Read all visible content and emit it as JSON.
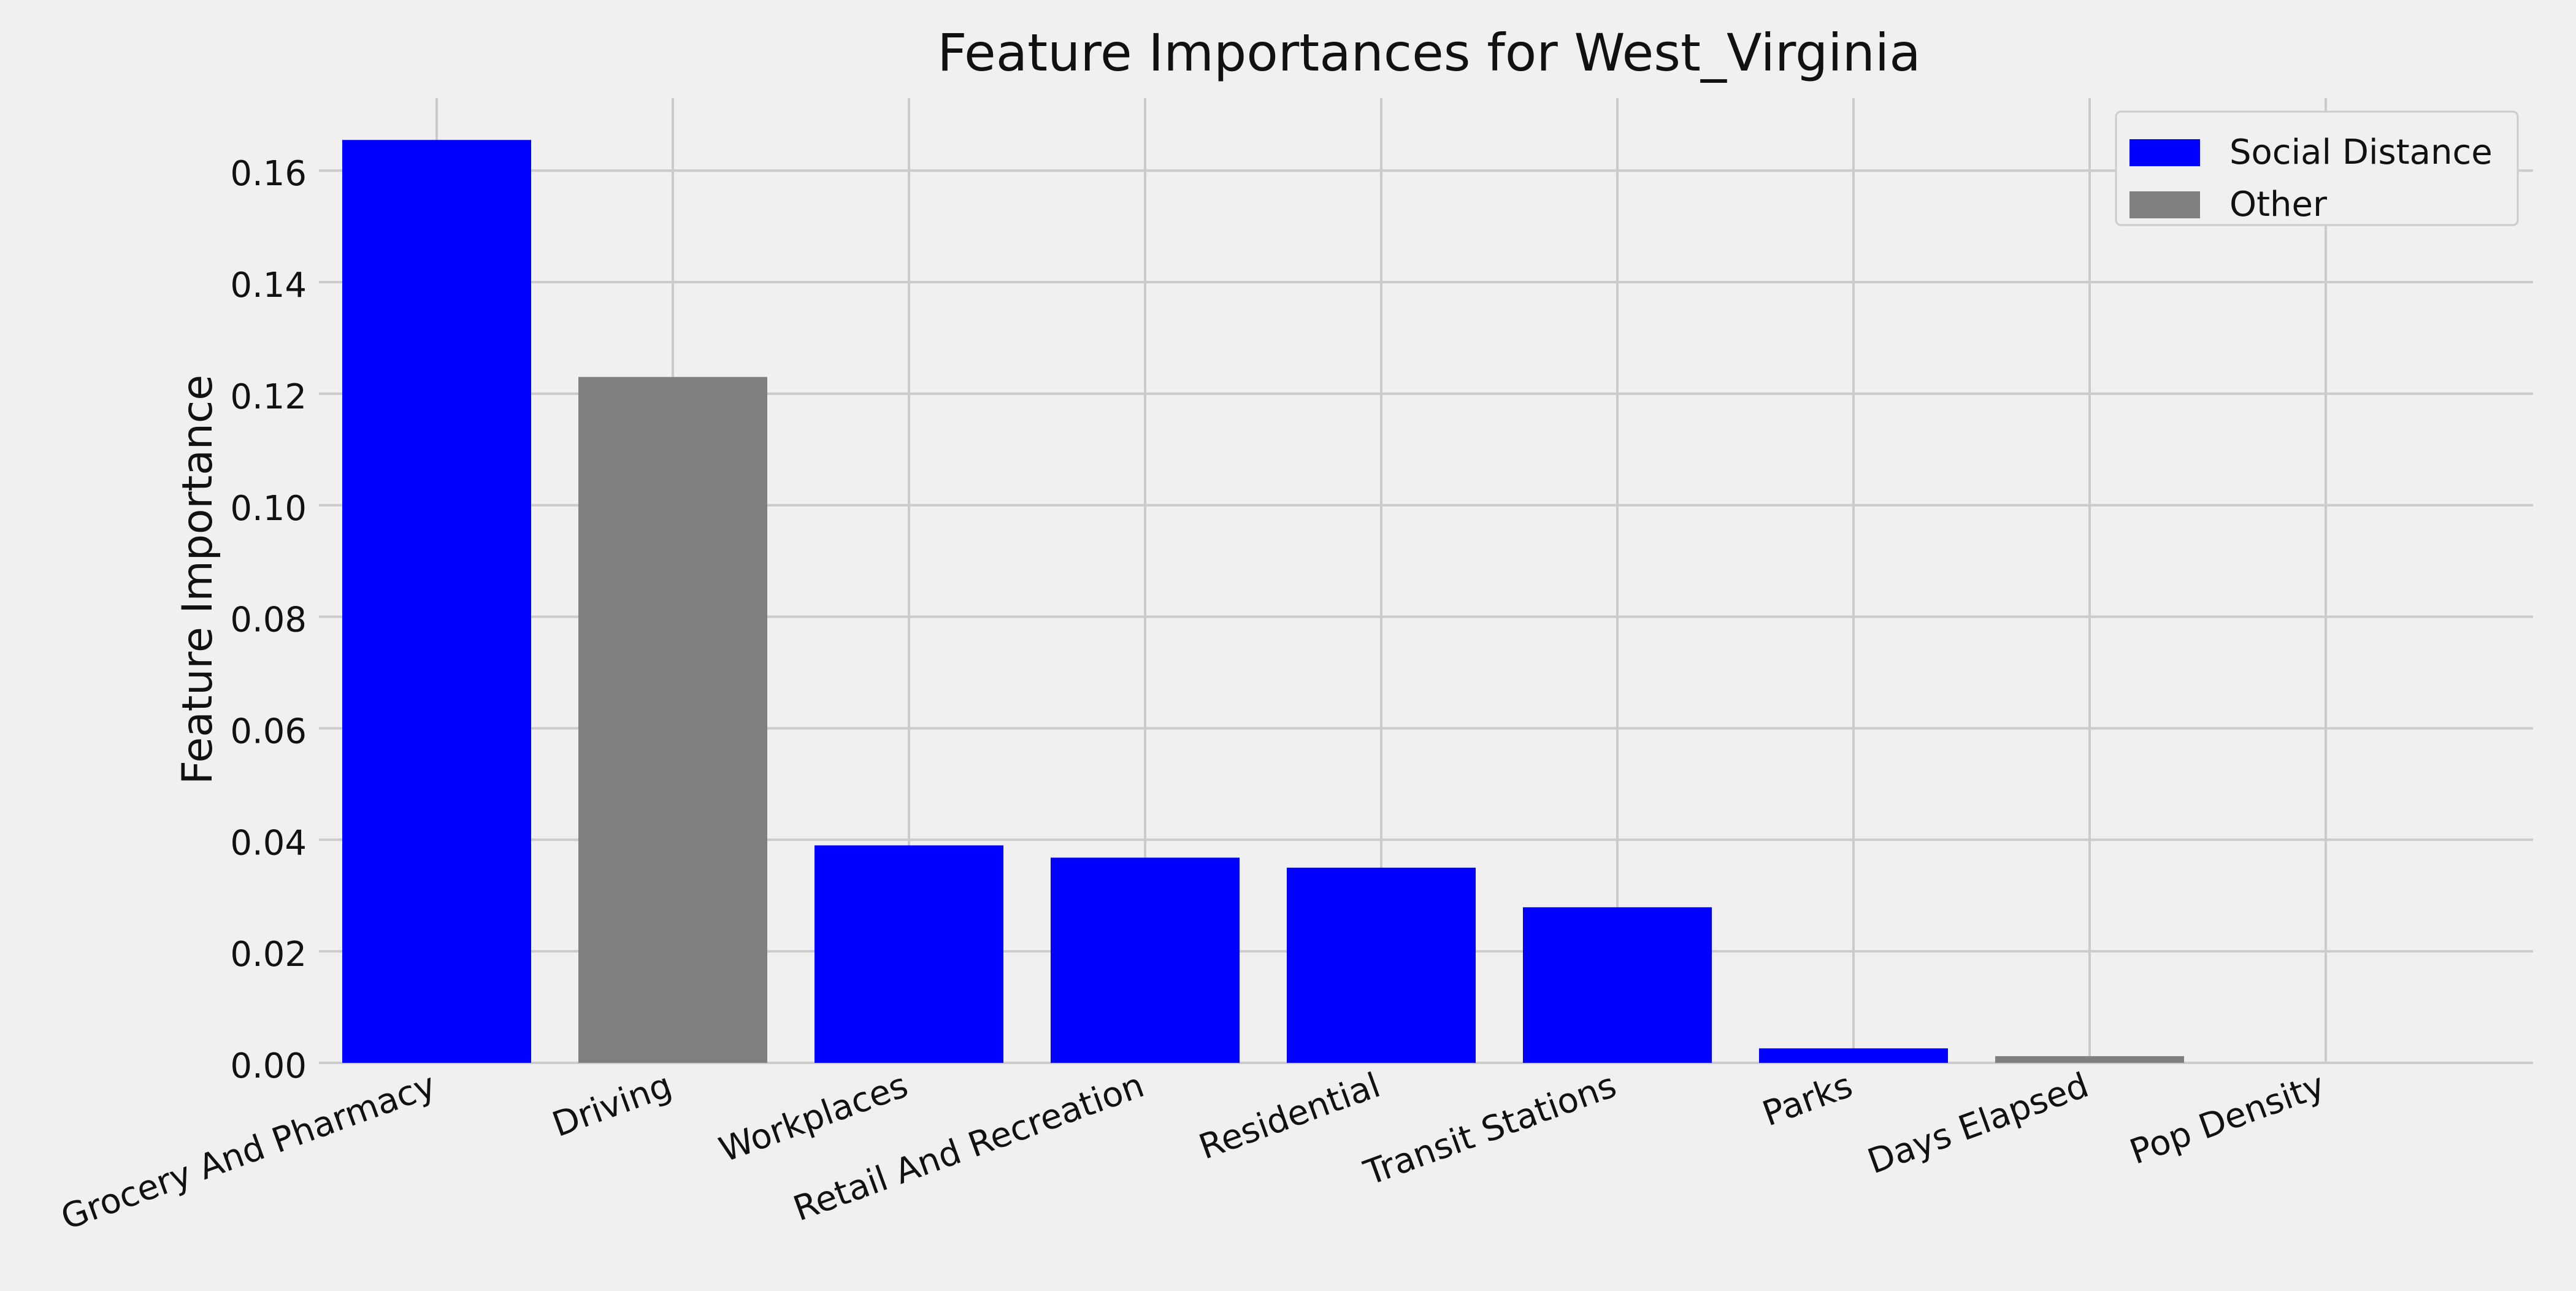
{
  "chart_data": {
    "type": "bar",
    "title": "Feature Importances for West_Virginia",
    "xlabel": "",
    "ylabel": "Feature Importance",
    "categories": [
      "Grocery And Pharmacy",
      "Driving",
      "Workplaces",
      "Retail And Recreation",
      "Residential",
      "Transit Stations",
      "Parks",
      "Days Elapsed",
      "Pop Density"
    ],
    "values": [
      0.1655,
      0.123,
      0.039,
      0.0368,
      0.035,
      0.0279,
      0.0026,
      0.0012,
      0.0
    ],
    "groups": [
      "Social Distance",
      "Other",
      "Social Distance",
      "Social Distance",
      "Social Distance",
      "Social Distance",
      "Social Distance",
      "Other",
      "Other"
    ],
    "legend": {
      "placement": "top-right",
      "entries": [
        {
          "label": "Social Distance",
          "color": "#0000ff"
        },
        {
          "label": "Other",
          "color": "#808080"
        }
      ]
    },
    "yticks": [
      "0.00",
      "0.02",
      "0.04",
      "0.06",
      "0.08",
      "0.10",
      "0.12",
      "0.14",
      "0.16"
    ],
    "ylim": [
      0,
      0.173
    ],
    "grid": true,
    "colors": {
      "background": "#f0f0f0",
      "grid": "#cbcbcb",
      "text": "#111111"
    }
  }
}
